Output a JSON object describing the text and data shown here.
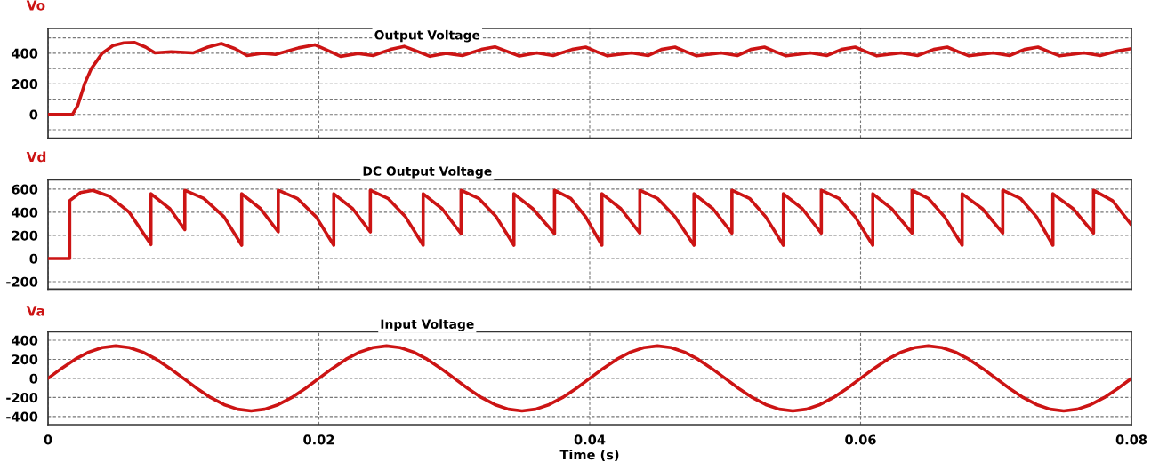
{
  "chart_data": [
    {
      "type": "line",
      "title": "Output Voltage",
      "xlim": [
        0,
        0.08
      ],
      "xticks": [
        0,
        0.02,
        0.04,
        0.06,
        0.08
      ],
      "ylim": [
        -155,
        562
      ],
      "yticks": [
        {
          "value": -100,
          "label": null
        },
        0,
        {
          "value": 100,
          "label": null
        },
        200,
        {
          "value": 300,
          "label": null
        },
        400,
        {
          "value": 500,
          "label": null
        }
      ],
      "grid": true,
      "legend": "top left",
      "tick_labels": "y",
      "marker": "none",
      "line_style": "solid",
      "series": [
        {
          "name": "Vo",
          "color": "#cc1414",
          "x": [
            0,
            0.0018,
            0.0022,
            0.0027,
            0.0032,
            0.004,
            0.0048,
            0.0056,
            0.0064,
            0.0072,
            0.0079,
            0.0091,
            0.0107,
            0.0118,
            0.0128,
            0.0138,
            0.0147,
            0.0158,
            0.0168,
            0.0185,
            0.0197,
            0.0206,
            0.0216,
            0.0229,
            0.024,
            0.0253,
            0.0263,
            0.0272,
            0.0282,
            0.0294,
            0.0306,
            0.032,
            0.033,
            0.0339,
            0.0348,
            0.0361,
            0.0373,
            0.0387,
            0.0397,
            0.0405,
            0.0413,
            0.0431,
            0.0443,
            0.0453,
            0.0463,
            0.0471,
            0.0479,
            0.0497,
            0.0509,
            0.0519,
            0.0529,
            0.0537,
            0.0545,
            0.0563,
            0.0575,
            0.0586,
            0.0596,
            0.0604,
            0.0612,
            0.063,
            0.0642,
            0.0654,
            0.0664,
            0.0672,
            0.068,
            0.0698,
            0.071,
            0.0721,
            0.0731,
            0.0739,
            0.0747,
            0.0765,
            0.0777,
            0.079,
            0.08
          ],
          "values": [
            0,
            0,
            60,
            200,
            300,
            400,
            450,
            468,
            470,
            440,
            402,
            410,
            402,
            440,
            463,
            430,
            385,
            400,
            392,
            435,
            455,
            420,
            380,
            398,
            385,
            425,
            445,
            415,
            380,
            400,
            385,
            425,
            442,
            412,
            382,
            402,
            385,
            425,
            440,
            410,
            383,
            402,
            385,
            425,
            440,
            410,
            383,
            402,
            385,
            425,
            440,
            410,
            383,
            402,
            385,
            425,
            440,
            410,
            383,
            402,
            385,
            425,
            440,
            410,
            383,
            402,
            385,
            425,
            440,
            410,
            383,
            402,
            385,
            415,
            430
          ]
        }
      ]
    },
    {
      "type": "line",
      "title": "DC Output Voltage",
      "xlim": [
        0,
        0.08
      ],
      "xticks": [
        0,
        0.02,
        0.04,
        0.06,
        0.08
      ],
      "ylim": [
        -265,
        680
      ],
      "yticks": [
        -200,
        0,
        200,
        400,
        600
      ],
      "grid": true,
      "legend": "top left",
      "tick_labels": "y",
      "marker": "none",
      "line_style": "solid",
      "series": [
        {
          "name": "Vd",
          "color": "#cc1414",
          "x": [
            0,
            0.0016,
            0.0016,
            0.0024,
            0.0033,
            0.0045,
            0.006,
            0.0076,
            0.0076,
            0.009,
            0.0101,
            0.0101,
            0.0115,
            0.013,
            0.0143,
            0.0143,
            0.0157,
            0.017,
            0.017,
            0.0184,
            0.0198,
            0.0211,
            0.0211,
            0.0225,
            0.0238,
            0.0238,
            0.0251,
            0.0264,
            0.0277,
            0.0277,
            0.0291,
            0.0305,
            0.0305,
            0.0318,
            0.0331,
            0.0344,
            0.0344,
            0.0358,
            0.0374,
            0.0374,
            0.0386,
            0.0397,
            0.0409,
            0.0409,
            0.0423,
            0.0437,
            0.0437,
            0.045,
            0.0463,
            0.0477,
            0.0477,
            0.0491,
            0.0505,
            0.0505,
            0.0518,
            0.053,
            0.0543,
            0.0543,
            0.0557,
            0.0571,
            0.0571,
            0.0584,
            0.0596,
            0.0609,
            0.0609,
            0.0623,
            0.0638,
            0.0638,
            0.065,
            0.0662,
            0.0675,
            0.0675,
            0.069,
            0.0705,
            0.0705,
            0.0718,
            0.073,
            0.0742,
            0.0742,
            0.0757,
            0.0772,
            0.0772,
            0.0786,
            0.08
          ],
          "values": [
            0,
            0,
            500,
            570,
            590,
            540,
            400,
            120,
            560,
            430,
            250,
            590,
            520,
            360,
            115,
            560,
            430,
            230,
            590,
            520,
            360,
            115,
            560,
            430,
            230,
            590,
            520,
            360,
            115,
            560,
            430,
            215,
            590,
            520,
            360,
            115,
            560,
            430,
            215,
            590,
            520,
            360,
            115,
            560,
            430,
            220,
            590,
            520,
            360,
            115,
            560,
            430,
            220,
            590,
            520,
            360,
            115,
            560,
            430,
            220,
            590,
            520,
            360,
            115,
            560,
            430,
            220,
            590,
            520,
            360,
            115,
            560,
            430,
            220,
            590,
            520,
            360,
            115,
            560,
            430,
            220,
            590,
            500,
            290
          ]
        }
      ]
    },
    {
      "type": "line",
      "title": "Input Voltage",
      "xlabel": "Time (s)",
      "xlim": [
        0,
        0.08
      ],
      "xticks": [
        0,
        0.02,
        0.04,
        0.06,
        0.08
      ],
      "ylim": [
        -485,
        490
      ],
      "yticks": [
        -400,
        -200,
        0,
        200,
        400
      ],
      "grid": true,
      "legend": "top left",
      "marker": "none",
      "line_style": "solid",
      "series": [
        {
          "name": "Va",
          "color": "#cc1414",
          "x": [
            0,
            0.001,
            0.002,
            0.003,
            0.004,
            0.005,
            0.006,
            0.007,
            0.008,
            0.009,
            0.01,
            0.011,
            0.012,
            0.013,
            0.014,
            0.015,
            0.016,
            0.017,
            0.018,
            0.019,
            0.02,
            0.021,
            0.022,
            0.023,
            0.024,
            0.025,
            0.026,
            0.027,
            0.028,
            0.029,
            0.03,
            0.031,
            0.032,
            0.033,
            0.034,
            0.035,
            0.036,
            0.037,
            0.038,
            0.039,
            0.04,
            0.041,
            0.042,
            0.043,
            0.044,
            0.045,
            0.046,
            0.047,
            0.048,
            0.049,
            0.05,
            0.051,
            0.052,
            0.053,
            0.054,
            0.055,
            0.056,
            0.057,
            0.058,
            0.059,
            0.06,
            0.061,
            0.062,
            0.063,
            0.064,
            0.065,
            0.066,
            0.067,
            0.068,
            0.069,
            0.07,
            0.071,
            0.072,
            0.073,
            0.074,
            0.075,
            0.076,
            0.077,
            0.078,
            0.079,
            0.08
          ],
          "values": [
            0,
            105,
            200,
            275,
            323,
            340,
            323,
            275,
            200,
            105,
            0,
            -105,
            -200,
            -275,
            -323,
            -340,
            -323,
            -275,
            -200,
            -105,
            0,
            105,
            200,
            275,
            323,
            340,
            323,
            275,
            200,
            105,
            0,
            -105,
            -200,
            -275,
            -323,
            -340,
            -323,
            -275,
            -200,
            -105,
            0,
            105,
            200,
            275,
            323,
            340,
            323,
            275,
            200,
            105,
            0,
            -105,
            -200,
            -275,
            -323,
            -340,
            -323,
            -275,
            -200,
            -105,
            0,
            105,
            200,
            275,
            323,
            340,
            323,
            275,
            200,
            105,
            0,
            -105,
            -200,
            -275,
            -323,
            -340,
            -323,
            -275,
            -200,
            -105,
            0
          ]
        }
      ]
    }
  ]
}
